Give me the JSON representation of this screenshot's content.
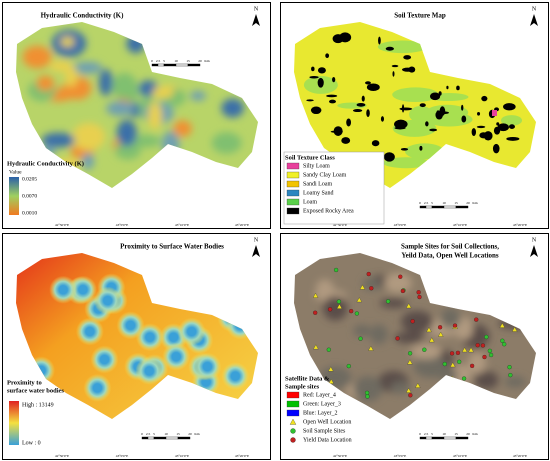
{
  "north": "N",
  "scale": [
    "0",
    "2.5",
    "5",
    "10",
    "15",
    "20",
    "Km"
  ],
  "lon_labels": [
    "42°50'0\"E",
    "43°0'0\"E",
    "43°10'0\"E",
    "43°20'0\"E"
  ],
  "panels": [
    {
      "title": [
        "Hydraulic Conductivity (K)"
      ],
      "legend": {
        "title": [
          "Hydraulic Conductivity (K)"
        ],
        "subtitle": "Value",
        "high": "0.0205",
        "mid": "0.0070",
        "low": "0.0010"
      }
    },
    {
      "title": [
        "Soil Texture Map"
      ],
      "legend": {
        "title": [
          "Soil Texture Class"
        ],
        "items": [
          {
            "label": "Silty Loam",
            "color": "#e8409c"
          },
          {
            "label": "Sandy Clay Loam",
            "color": "#f0f028"
          },
          {
            "label": "Sandi Loam",
            "color": "#f2c400"
          },
          {
            "label": "Loamy Sand",
            "color": "#2c86c0"
          },
          {
            "label": "Loam",
            "color": "#5ad04a"
          },
          {
            "label": "Exposed Rocky Area",
            "color": "#000000"
          }
        ]
      }
    },
    {
      "title": [
        "Proximity to Surface Water Bodies"
      ],
      "legend": {
        "title": [
          "Proximity to",
          "surface water bodies"
        ],
        "high": "High : 13149",
        "low": "Low : 0"
      }
    },
    {
      "title": [
        "Sample Sites for Soil Collections,",
        "Yeild Data, Open Well Locations"
      ],
      "legend": {
        "title": [
          "Satellite Data &",
          "Sample sites"
        ],
        "items": [
          {
            "label": "Red:   Layer_4",
            "color": "#ff0000",
            "shape": "rect"
          },
          {
            "label": "Green: Layer_3",
            "color": "#00c000",
            "shape": "rect"
          },
          {
            "label": "Blue:  Layer_2",
            "color": "#0000ff",
            "shape": "rect"
          },
          {
            "label": "Open Well Location",
            "color": "#f0e020",
            "shape": "triangle"
          },
          {
            "label": "Soil Sample Sites",
            "color": "#30c030",
            "shape": "circle"
          },
          {
            "label": "Yield Data Location",
            "color": "#c02020",
            "shape": "circle"
          }
        ]
      }
    }
  ]
}
